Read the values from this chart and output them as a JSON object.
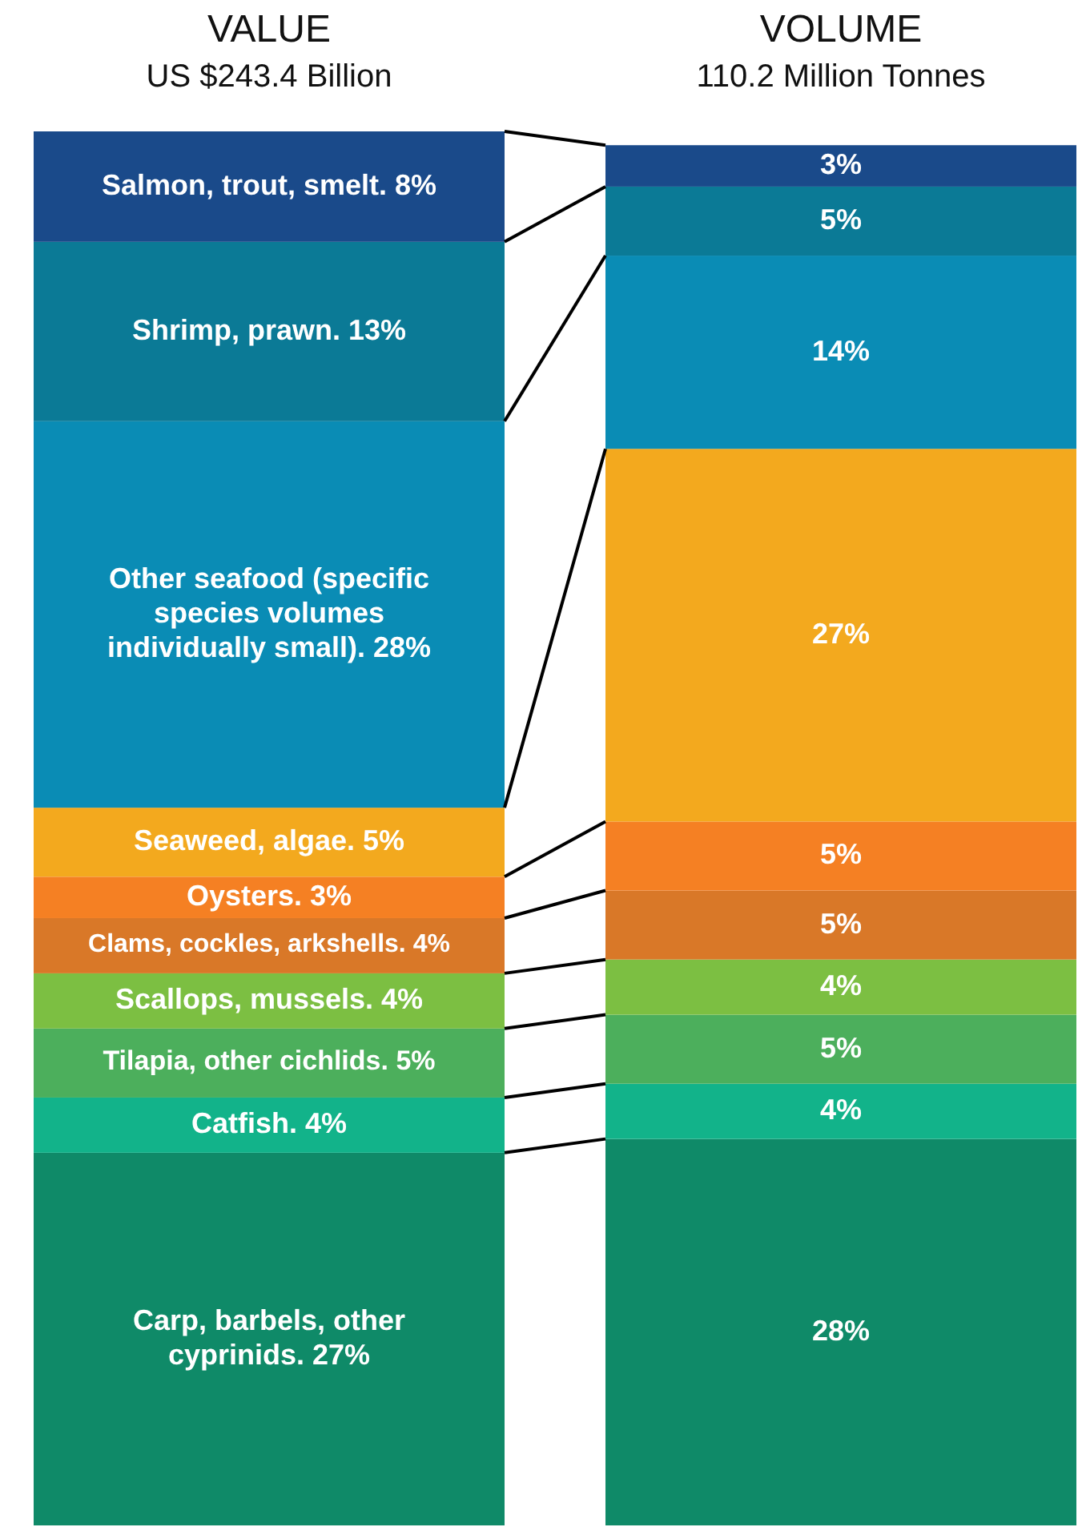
{
  "chart_data": {
    "type": "bar",
    "stacked": true,
    "categories": [
      "VALUE\nUS $243.4 Billion",
      "VOLUME\n110.2 Million Tonnes"
    ],
    "series": [
      {
        "name": "Carp, barbels, other cyprinids.",
        "color": "#0f8a68",
        "values": [
          27,
          28
        ],
        "value_labels": [
          "27%",
          "28%"
        ]
      },
      {
        "name": "Catfish.",
        "color": "#12b38a",
        "values": [
          4,
          4
        ],
        "value_labels": [
          "4%",
          "4%"
        ]
      },
      {
        "name": "Tilapia, other cichlids.",
        "color": "#4caf5c",
        "values": [
          5,
          5
        ],
        "value_labels": [
          "5%",
          "5%"
        ]
      },
      {
        "name": "Scallops, mussels.",
        "color": "#7cbf42",
        "values": [
          4,
          4
        ],
        "value_labels": [
          "4%",
          "4%"
        ]
      },
      {
        "name": "Clams, cockles, arkshells.",
        "color": "#d97828",
        "values": [
          4,
          5
        ],
        "value_labels": [
          "4%",
          "5%"
        ]
      },
      {
        "name": "Oysters.",
        "color": "#f58023",
        "values": [
          3,
          5
        ],
        "value_labels": [
          "3%",
          "5%"
        ]
      },
      {
        "name": "Seaweed, algae.",
        "color": "#f3a91e",
        "values": [
          5,
          27
        ],
        "value_labels": [
          "5%",
          "27%"
        ]
      },
      {
        "name": "Other seafood (specific species volumes individually small).",
        "color": "#0a8cb5",
        "values": [
          28,
          14
        ],
        "value_labels": [
          "28%",
          "14%"
        ]
      },
      {
        "name": "Shrimp, prawn.",
        "color": "#0b7a96",
        "values": [
          13,
          5
        ],
        "value_labels": [
          "13%",
          "5%"
        ]
      },
      {
        "name": "Salmon, trout, smelt.",
        "color": "#1a4a8a",
        "values": [
          8,
          3
        ],
        "value_labels": [
          "8%",
          "3%"
        ]
      }
    ]
  }
}
